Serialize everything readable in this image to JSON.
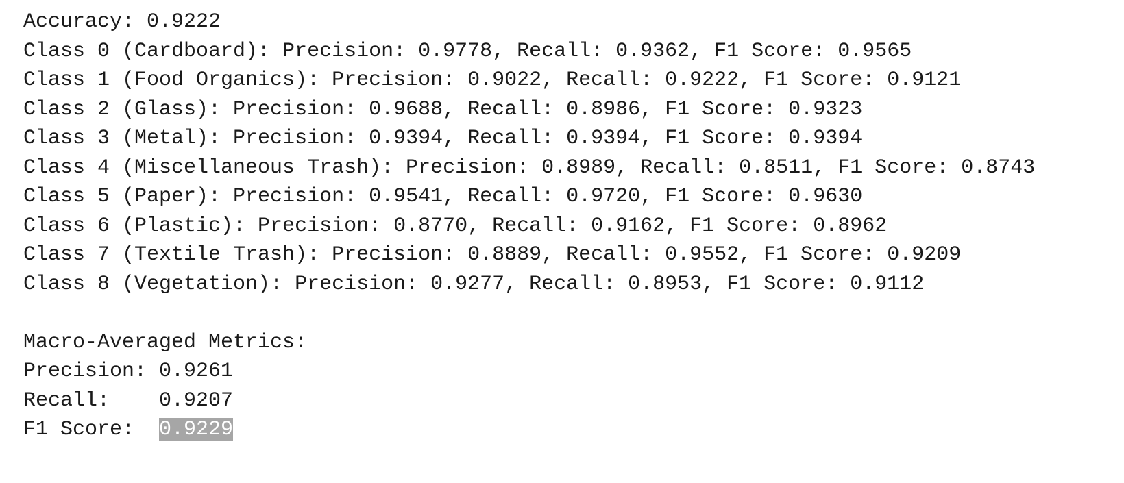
{
  "output": {
    "lines": [
      "Accuracy: 0.9222",
      "Class 0 (Cardboard): Precision: 0.9778, Recall: 0.9362, F1 Score: 0.9565",
      "Class 1 (Food Organics): Precision: 0.9022, Recall: 0.9222, F1 Score: 0.9121",
      "Class 2 (Glass): Precision: 0.9688, Recall: 0.8986, F1 Score: 0.9323",
      "Class 3 (Metal): Precision: 0.9394, Recall: 0.9394, F1 Score: 0.9394",
      "Class 4 (Miscellaneous Trash): Precision: 0.8989, Recall: 0.8511, F1 Score: 0.8743",
      "Class 5 (Paper): Precision: 0.9541, Recall: 0.9720, F1 Score: 0.9630",
      "Class 6 (Plastic): Precision: 0.8770, Recall: 0.9162, F1 Score: 0.8962",
      "Class 7 (Textile Trash): Precision: 0.8889, Recall: 0.9552, F1 Score: 0.9209",
      "Class 8 (Vegetation): Precision: 0.9277, Recall: 0.8953, F1 Score: 0.9112"
    ],
    "macro": {
      "heading": "Macro-Averaged Metrics:",
      "rows": [
        {
          "label": "Precision:",
          "value": "0.9261"
        },
        {
          "label": "Recall:",
          "value": "0.9207"
        },
        {
          "label": "F1 Score:",
          "value": "0.9229"
        }
      ]
    }
  }
}
